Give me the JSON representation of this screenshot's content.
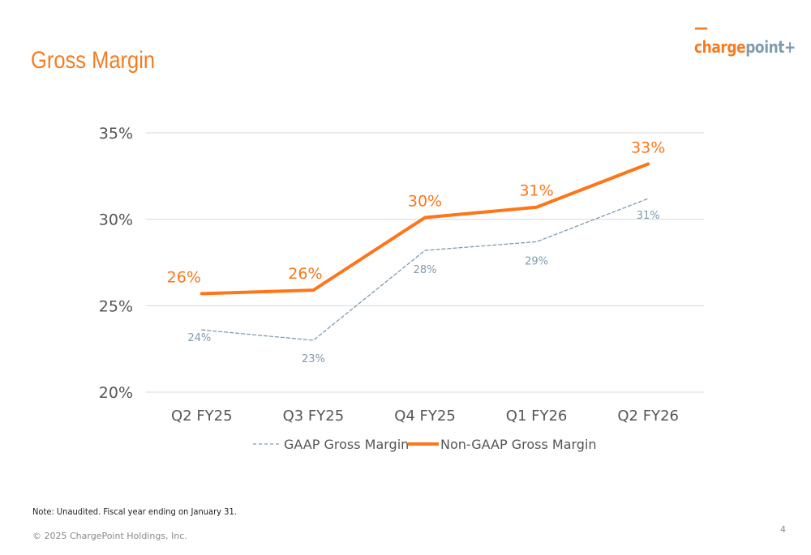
{
  "header": {
    "title": "Gross Margin",
    "logo_text": "chargepoint"
  },
  "footer": {
    "note": "Note: Unaudited. Fiscal year ending on January 31.",
    "copyright": "© 2025 ChargePoint Holdings, Inc.",
    "page_number": "4"
  },
  "chart_data": {
    "type": "line",
    "categories": [
      "Q2 FY25",
      "Q3 FY25",
      "Q4 FY25",
      "Q1 FY26",
      "Q2 FY26"
    ],
    "yticks": [
      "20%",
      "25%",
      "30%",
      "35%"
    ],
    "ylim": [
      20,
      35
    ],
    "grid": true,
    "legend_placement": "bottom",
    "series": [
      {
        "name": "GAAP Gross Margin",
        "values": [
          23.6,
          23.0,
          28.2,
          28.7,
          31.2
        ],
        "labels": [
          "24%",
          "23%",
          "28%",
          "29%",
          "31%"
        ],
        "color": "#7E9BB0",
        "style": "dashed"
      },
      {
        "name": "Non-GAAP Gross Margin",
        "values": [
          25.7,
          25.9,
          30.1,
          30.7,
          33.2
        ],
        "labels": [
          "26%",
          "26%",
          "30%",
          "31%",
          "33%"
        ],
        "color": "#FF7518",
        "style": "solid"
      }
    ]
  }
}
